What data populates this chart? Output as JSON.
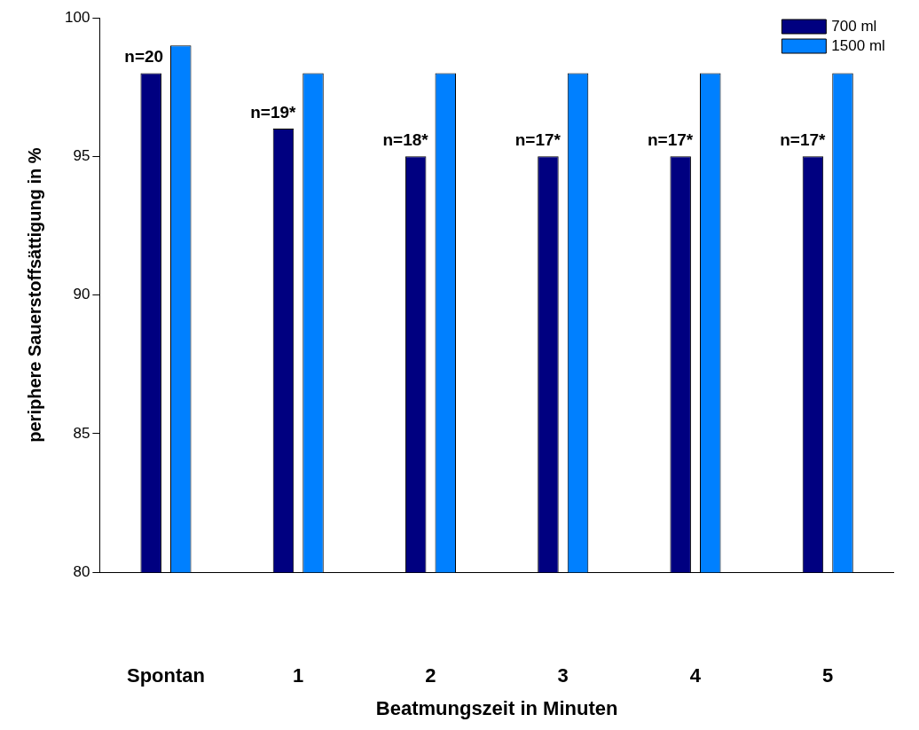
{
  "chart_data": {
    "type": "bar",
    "xlabel": "Beatmungszeit in Minuten",
    "ylabel": "periphere Sauerstoffsättigung in %",
    "categories": [
      "Spontan",
      "1",
      "2",
      "3",
      "4",
      "5"
    ],
    "series": [
      {
        "name": "700 ml",
        "color": "#000080",
        "values": [
          98,
          96,
          95,
          95,
          95,
          95
        ]
      },
      {
        "name": "1500 ml",
        "color": "#0080ff",
        "values": [
          99,
          98,
          98,
          98,
          98,
          98
        ]
      }
    ],
    "ylim": [
      80,
      100
    ],
    "yticks": [
      80,
      85,
      90,
      95,
      100
    ],
    "grid": false,
    "legend": "top right",
    "annotations": [
      "n=20",
      "n=19*",
      "n=18*",
      "n=17*",
      "n=17*",
      "n=17*"
    ]
  }
}
